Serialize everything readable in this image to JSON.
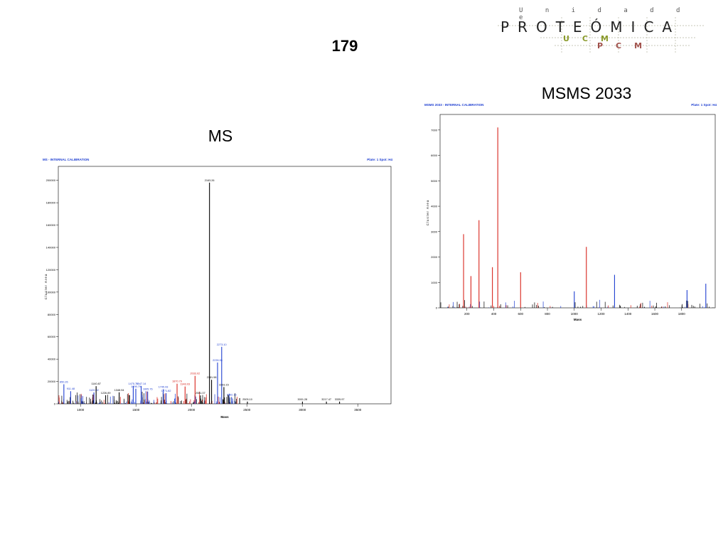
{
  "slide": {
    "number": "179"
  },
  "logo": {
    "top": "U n i d a d   d e",
    "main": "PROTEÓMICA",
    "ucm": "UCM",
    "pcm": "PCM"
  },
  "titles": {
    "ms": "MS",
    "msms": "MSMS 2033"
  },
  "chart_data": [
    {
      "type": "bar",
      "title": "MS - INTERNAL CALIBRATION",
      "subtitle": "Plate: 1 Spot: H4",
      "xlabel": "Mass",
      "ylabel": "Cluster Area",
      "xlim": [
        800,
        3800
      ],
      "ylim": [
        0,
        21000
      ],
      "x_ticks": [
        1000,
        1500,
        2000,
        2500,
        3000,
        3500
      ],
      "y_ticks": [
        0,
        2000,
        4000,
        6000,
        8000,
        10000,
        12000,
        14000,
        16000,
        18000,
        20000
      ],
      "y_tick_labels": [
        "0",
        "20000",
        "40000",
        "60000",
        "80000",
        "100000",
        "120000",
        "140000",
        "160000",
        "180000",
        "200000"
      ],
      "grid": false,
      "colors": {
        "main": "#000000",
        "blue": "#1f3fd1",
        "red": "#d8241c"
      },
      "peaks": [
        {
          "x": 850.26,
          "y": 1750,
          "label": "850.26",
          "color": "blue"
        },
        {
          "x": 911.48,
          "y": 1130,
          "label": "911.48",
          "color": "blue"
        },
        {
          "x": 1120.92,
          "y": 1020,
          "label": "1120.92",
          "color": "blue"
        },
        {
          "x": 1140.87,
          "y": 1580,
          "label": "1140.87",
          "color": "black"
        },
        {
          "x": 1226.89,
          "y": 770,
          "label": "1226.89",
          "color": "black"
        },
        {
          "x": 1348.94,
          "y": 1030,
          "label": "1348.94",
          "color": "black"
        },
        {
          "x": 1475.79,
          "y": 1600,
          "label": "1475.79",
          "color": "blue"
        },
        {
          "x": 1547.14,
          "y": 1600,
          "label": "1547.14",
          "color": "blue"
        },
        {
          "x": 1498.79,
          "y": 1350,
          "label": "1498.79",
          "color": "blue"
        },
        {
          "x": 1605.76,
          "y": 1100,
          "label": "1605.76",
          "color": "blue"
        },
        {
          "x": 1745.93,
          "y": 1300,
          "label": "1745.93",
          "color": "blue"
        },
        {
          "x": 1771.82,
          "y": 950,
          "label": "1771.82",
          "color": "blue"
        },
        {
          "x": 1870.79,
          "y": 1800,
          "label": "1870.79",
          "color": "red"
        },
        {
          "x": 1943.03,
          "y": 1550,
          "label": "1943.03",
          "color": "red"
        },
        {
          "x": 2033.02,
          "y": 2500,
          "label": "2033.02",
          "color": "red"
        },
        {
          "x": 2081.07,
          "y": 750,
          "label": "2081.07",
          "color": "black"
        },
        {
          "x": 2163.26,
          "y": 19800,
          "label": "2163.26",
          "color": "black"
        },
        {
          "x": 2181.98,
          "y": 2150,
          "label": "2181.98",
          "color": "black"
        },
        {
          "x": 2235.95,
          "y": 3700,
          "label": "2235.95",
          "color": "blue"
        },
        {
          "x": 2273.1,
          "y": 5100,
          "label": "2273.10",
          "color": "blue"
        },
        {
          "x": 2293.15,
          "y": 1500,
          "label": "2293.15",
          "color": "black"
        },
        {
          "x": 2362.15,
          "y": 600,
          "label": "2362.15",
          "color": "blue"
        },
        {
          "x": 2505.1,
          "y": 200,
          "label": "2505.10",
          "color": "black"
        },
        {
          "x": 3001.28,
          "y": 200,
          "label": "3001.28",
          "color": "black"
        },
        {
          "x": 3217.47,
          "y": 200,
          "label": "3217.47",
          "color": "black"
        },
        {
          "x": 3335.97,
          "y": 200,
          "label": "3335.97",
          "color": "black"
        }
      ]
    },
    {
      "type": "bar",
      "title": "MSMS 2033 - INTERNAL CALIBRATION",
      "subtitle": "Plate: 1 Spot: H4",
      "xlabel": "Mass",
      "ylabel": "Cluster Area",
      "xlim": [
        0,
        2050
      ],
      "ylim": [
        0,
        7500
      ],
      "x_ticks": [
        200,
        400,
        600,
        800,
        1000,
        1200,
        1400,
        1600,
        1800
      ],
      "y_ticks": [
        0,
        1000,
        2000,
        3000,
        4000,
        5000,
        6000,
        7000
      ],
      "y_tick_labels": [
        "0",
        "1000",
        "2000",
        "3000",
        "4000",
        "5000",
        "6000",
        "7000"
      ],
      "grid": false,
      "colors": {
        "main": "#000000",
        "blue": "#1f3fd1",
        "red": "#d8241c"
      },
      "peaks": [
        {
          "x": 175,
          "y": 2900,
          "label": "",
          "color": "red"
        },
        {
          "x": 230,
          "y": 1250,
          "label": "",
          "color": "red"
        },
        {
          "x": 290,
          "y": 3450,
          "label": "",
          "color": "red"
        },
        {
          "x": 390,
          "y": 1600,
          "label": "",
          "color": "red"
        },
        {
          "x": 430,
          "y": 7100,
          "label": "",
          "color": "red"
        },
        {
          "x": 600,
          "y": 1400,
          "label": "",
          "color": "red"
        },
        {
          "x": 1000,
          "y": 650,
          "label": "",
          "color": "blue"
        },
        {
          "x": 1090,
          "y": 2400,
          "label": "",
          "color": "red"
        },
        {
          "x": 1300,
          "y": 1300,
          "label": "",
          "color": "blue"
        },
        {
          "x": 1840,
          "y": 700,
          "label": "",
          "color": "blue"
        },
        {
          "x": 1980,
          "y": 950,
          "label": "",
          "color": "blue"
        }
      ]
    }
  ]
}
